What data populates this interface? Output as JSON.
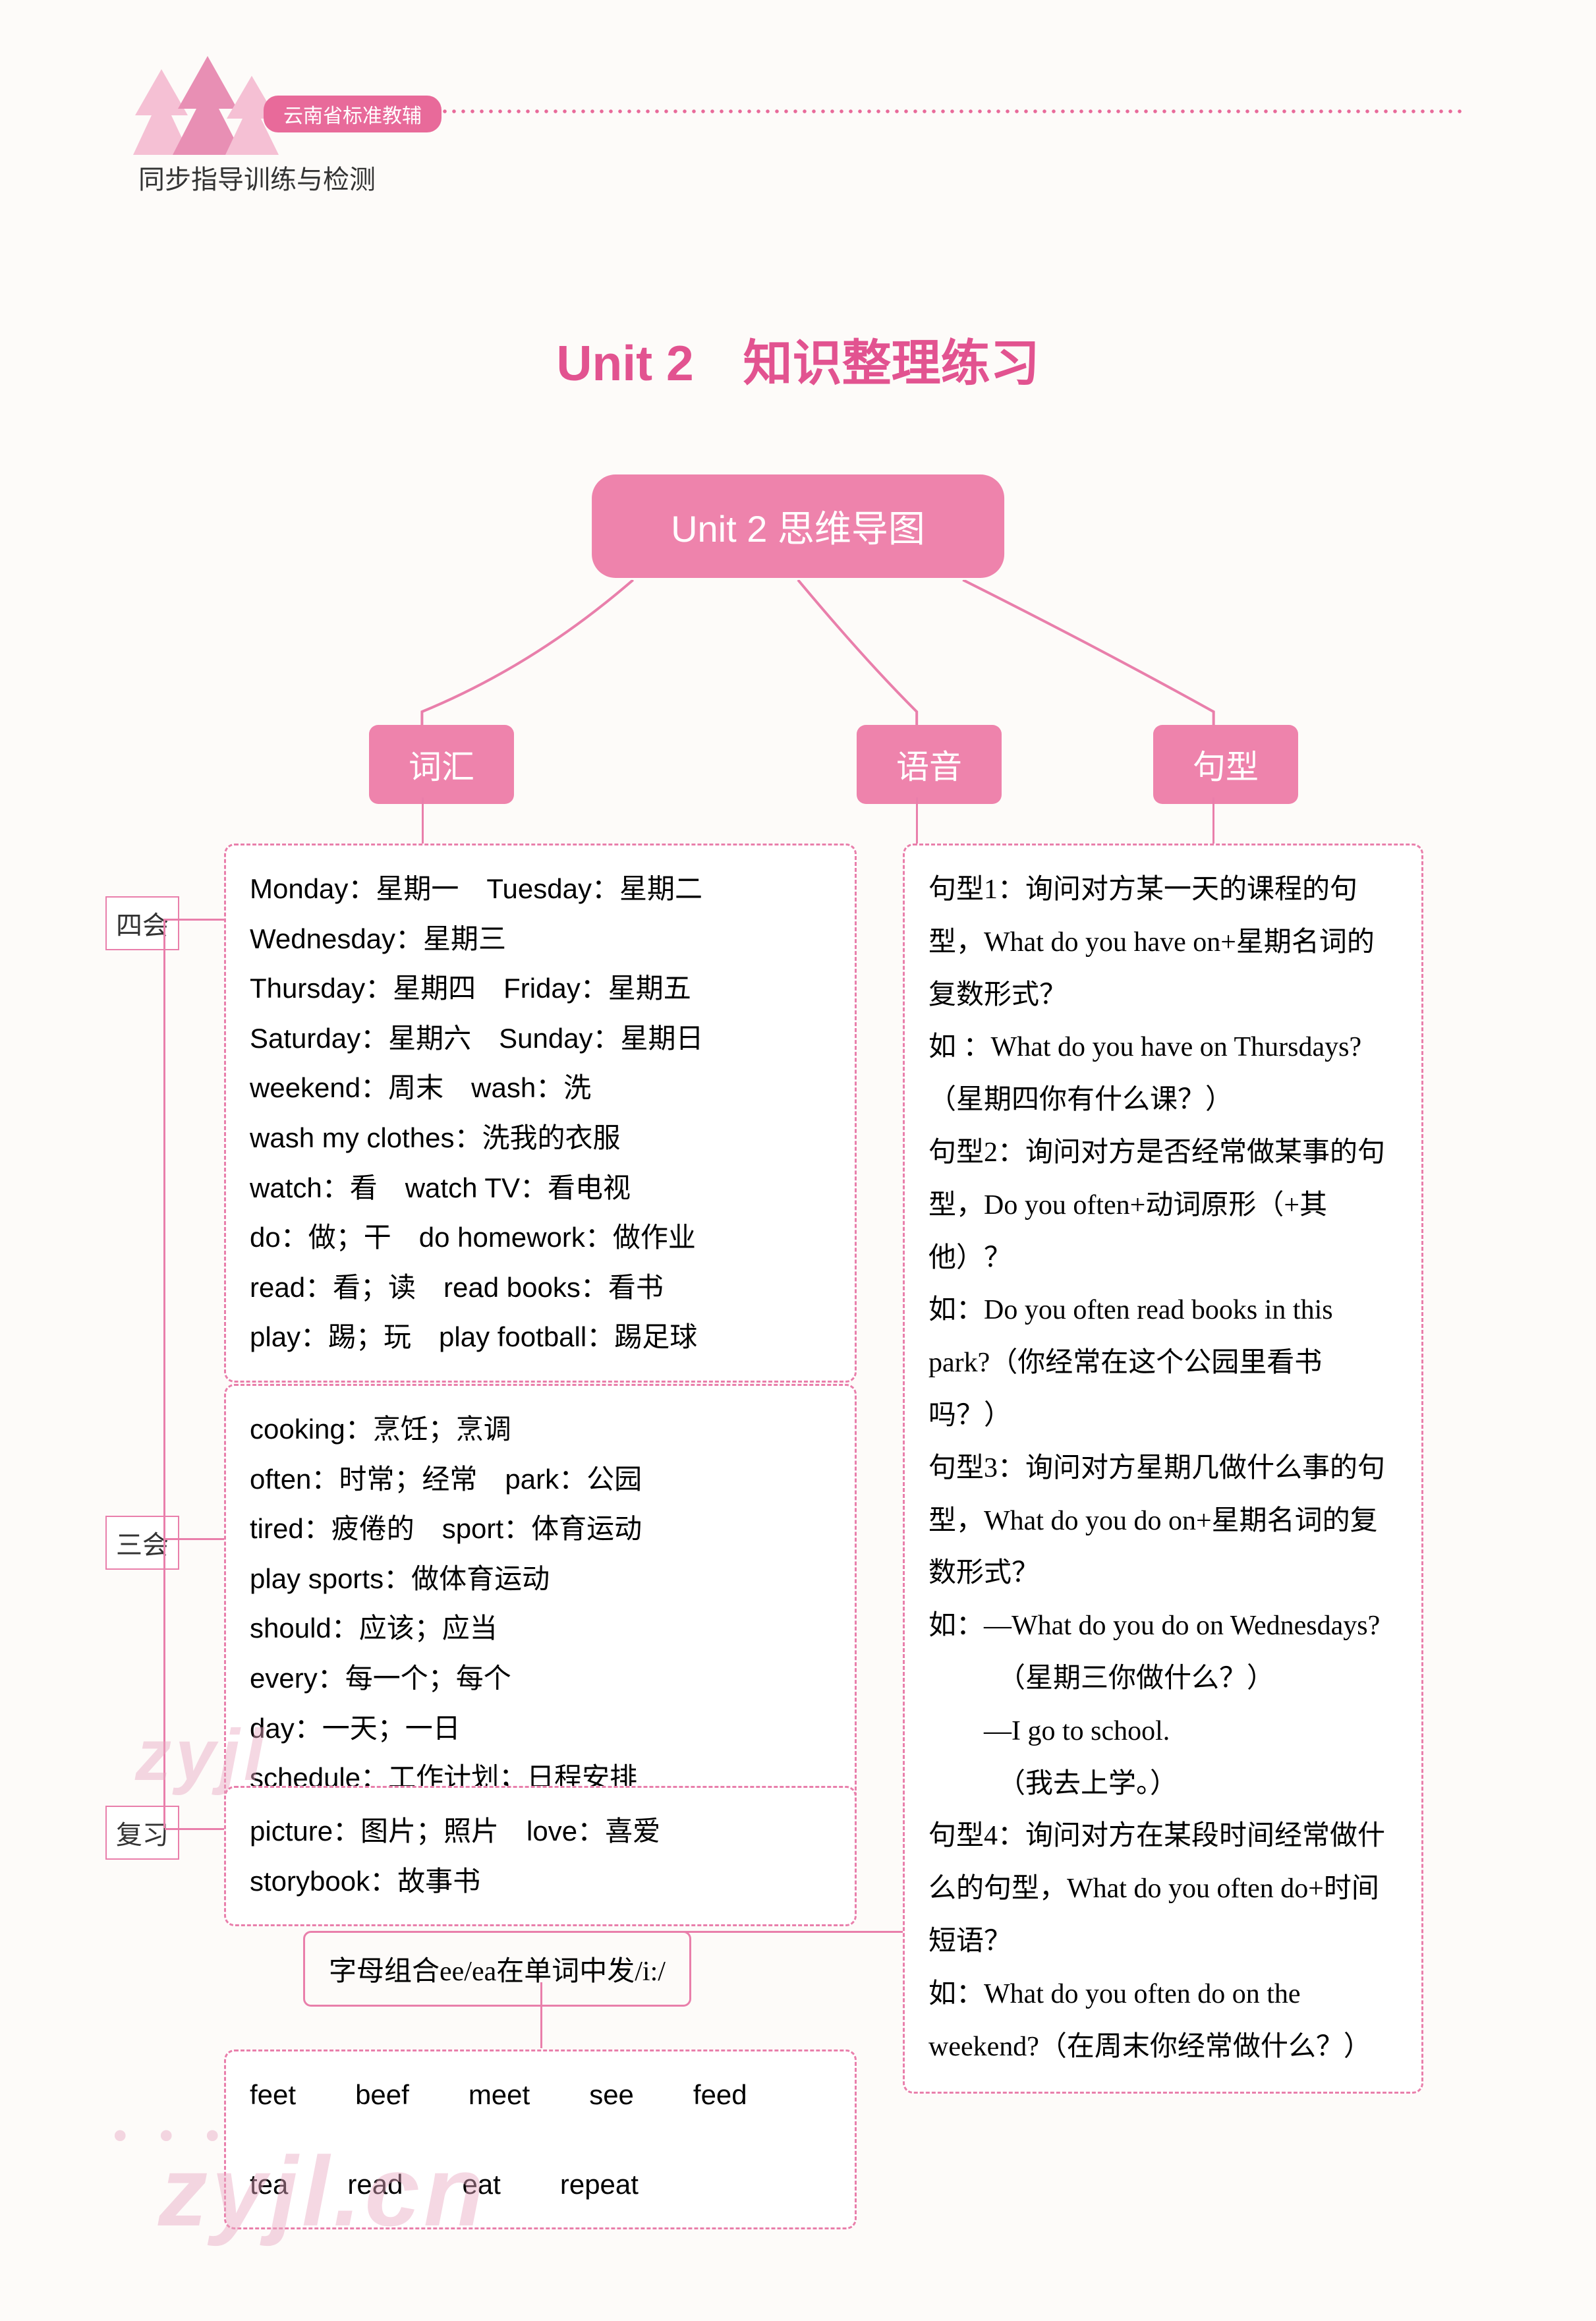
{
  "colors": {
    "accent": "#ee83ac",
    "accent_dark": "#e25390",
    "dashed": "#e97fab",
    "bg": "#fdfbf9",
    "text": "#333333"
  },
  "header": {
    "badge": "云南省标准教辅",
    "subtitle": "同步指导训练与检测"
  },
  "title": "Unit 2　知识整理练习",
  "mindmap_root": "Unit 2  思维导图",
  "categories": {
    "vocab": "词汇",
    "phon": "语音",
    "pattern": "句型"
  },
  "side_labels": {
    "sihui": "四会",
    "sanhui": "三会",
    "fuxi": "复习"
  },
  "vocab_sihui": "Monday：星期一　Tuesday：星期二\nWednesday：星期三\nThursday：星期四　Friday：星期五\nSaturday：星期六　Sunday：星期日\nweekend：周末　wash：洗\nwash my clothes：洗我的衣服\nwatch：看　watch TV：看电视\ndo：做；干　do homework：做作业\nread：看；读　read books：看书\nplay：踢；玩　play football：踢足球",
  "vocab_sanhui": "cooking：烹饪；烹调\noften：时常；经常　park：公园\ntired：疲倦的　sport：体育运动\nplay sports：做体育运动\nshould：应该；应当\nevery：每一个；每个\nday：一天；一日\nschedule：工作计划；日程安排",
  "vocab_fuxi": "picture：图片；照片　love：喜爱\nstorybook：故事书",
  "phon_rule": "字母组合ee/ea在单词中发/i:/",
  "phon_words": [
    "feet",
    "beef",
    "meet",
    "see",
    "feed",
    "tea",
    "read",
    "eat",
    "repeat"
  ],
  "patterns": "句型1：询问对方某一天的课程的句型，What do you have on+星期名词的复数形式？\n如 ：What do you have on Thursdays?（星期四你有什么课？）\n句型2：询问对方是否经常做某事的句型，Do you often+动词原形（+其他）？\n如：Do you often read books in this park?（你经常在这个公园里看书吗？）\n句型3：询问对方星期几做什么事的句型，What do you do on+星期名词的复数形式？\n如：—What do you do on Wednesdays?\n　　　（星期三你做什么？）\n　　—I go to school.\n　　　（我去上学。）\n句型4：询问对方在某段时间经常做什么的句型，What do you often do+时间短语？\n如：What do you often do on the weekend?（在周末你经常做什么？）",
  "watermark": {
    "text1": "zyjl",
    "text2": "zyjl.cn"
  }
}
